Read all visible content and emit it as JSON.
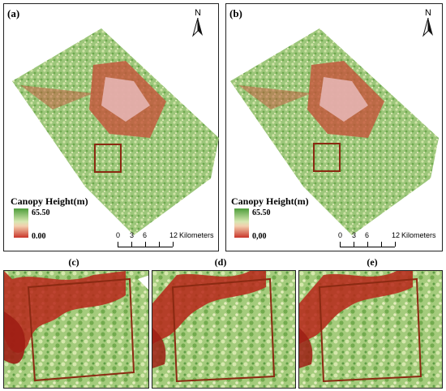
{
  "panels": {
    "a": {
      "label": "(a)"
    },
    "b": {
      "label": "(b)"
    },
    "c": {
      "label": "(c)"
    },
    "d": {
      "label": "(d)"
    },
    "e": {
      "label": "(e)"
    }
  },
  "north": "N",
  "legend": {
    "title": "Canopy Height(m)",
    "max": "65.50",
    "min_a": "0.00",
    "min_b": "0,00"
  },
  "scalebar": {
    "ticks": [
      "0",
      "3",
      "6",
      "12"
    ],
    "unit": "Kilometers"
  },
  "colors": {
    "high": "#4d9d3a",
    "mid": "#d7e8b2",
    "low": "#c9352a",
    "box": "#8b2a12"
  }
}
